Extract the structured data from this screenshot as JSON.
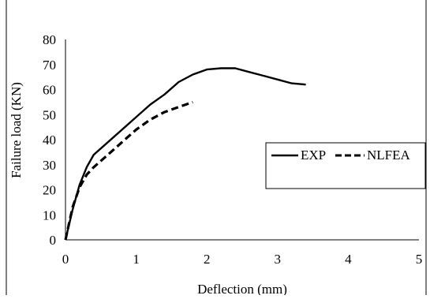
{
  "chart_data": {
    "type": "line",
    "title": "",
    "xlabel": "Deflection (mm)",
    "ylabel": "Failure load (KN)",
    "xlim": [
      0,
      5
    ],
    "ylim": [
      0,
      80
    ],
    "xticks": [
      0,
      1,
      2,
      3,
      4,
      5
    ],
    "yticks": [
      0,
      10,
      20,
      30,
      40,
      50,
      60,
      70,
      80
    ],
    "x_tick_labels": [
      "0",
      "1",
      "2",
      "3",
      "4",
      "5"
    ],
    "y_tick_labels": [
      "0",
      "10",
      "20",
      "30",
      "40",
      "50",
      "60",
      "70",
      "80"
    ],
    "grid": false,
    "legend_position": "right",
    "series": [
      {
        "name": "EXP",
        "style": "solid",
        "color": "#000000",
        "x": [
          0,
          0.1,
          0.2,
          0.3,
          0.4,
          0.6,
          0.8,
          1.0,
          1.2,
          1.4,
          1.6,
          1.8,
          2.0,
          2.2,
          2.4,
          2.6,
          2.8,
          3.0,
          3.2,
          3.4
        ],
        "y": [
          0,
          12,
          22,
          29,
          34,
          39,
          44,
          49,
          54,
          58,
          63,
          66,
          68,
          68.5,
          68.5,
          67,
          65.5,
          64,
          62.5,
          62
        ]
      },
      {
        "name": "NLFEA",
        "style": "dashed",
        "color": "#000000",
        "x": [
          0,
          0.1,
          0.2,
          0.3,
          0.4,
          0.6,
          0.8,
          1.0,
          1.2,
          1.4,
          1.6,
          1.8
        ],
        "y": [
          0,
          13,
          21,
          26,
          29,
          34,
          39,
          44,
          48,
          51,
          53,
          55
        ]
      }
    ]
  }
}
